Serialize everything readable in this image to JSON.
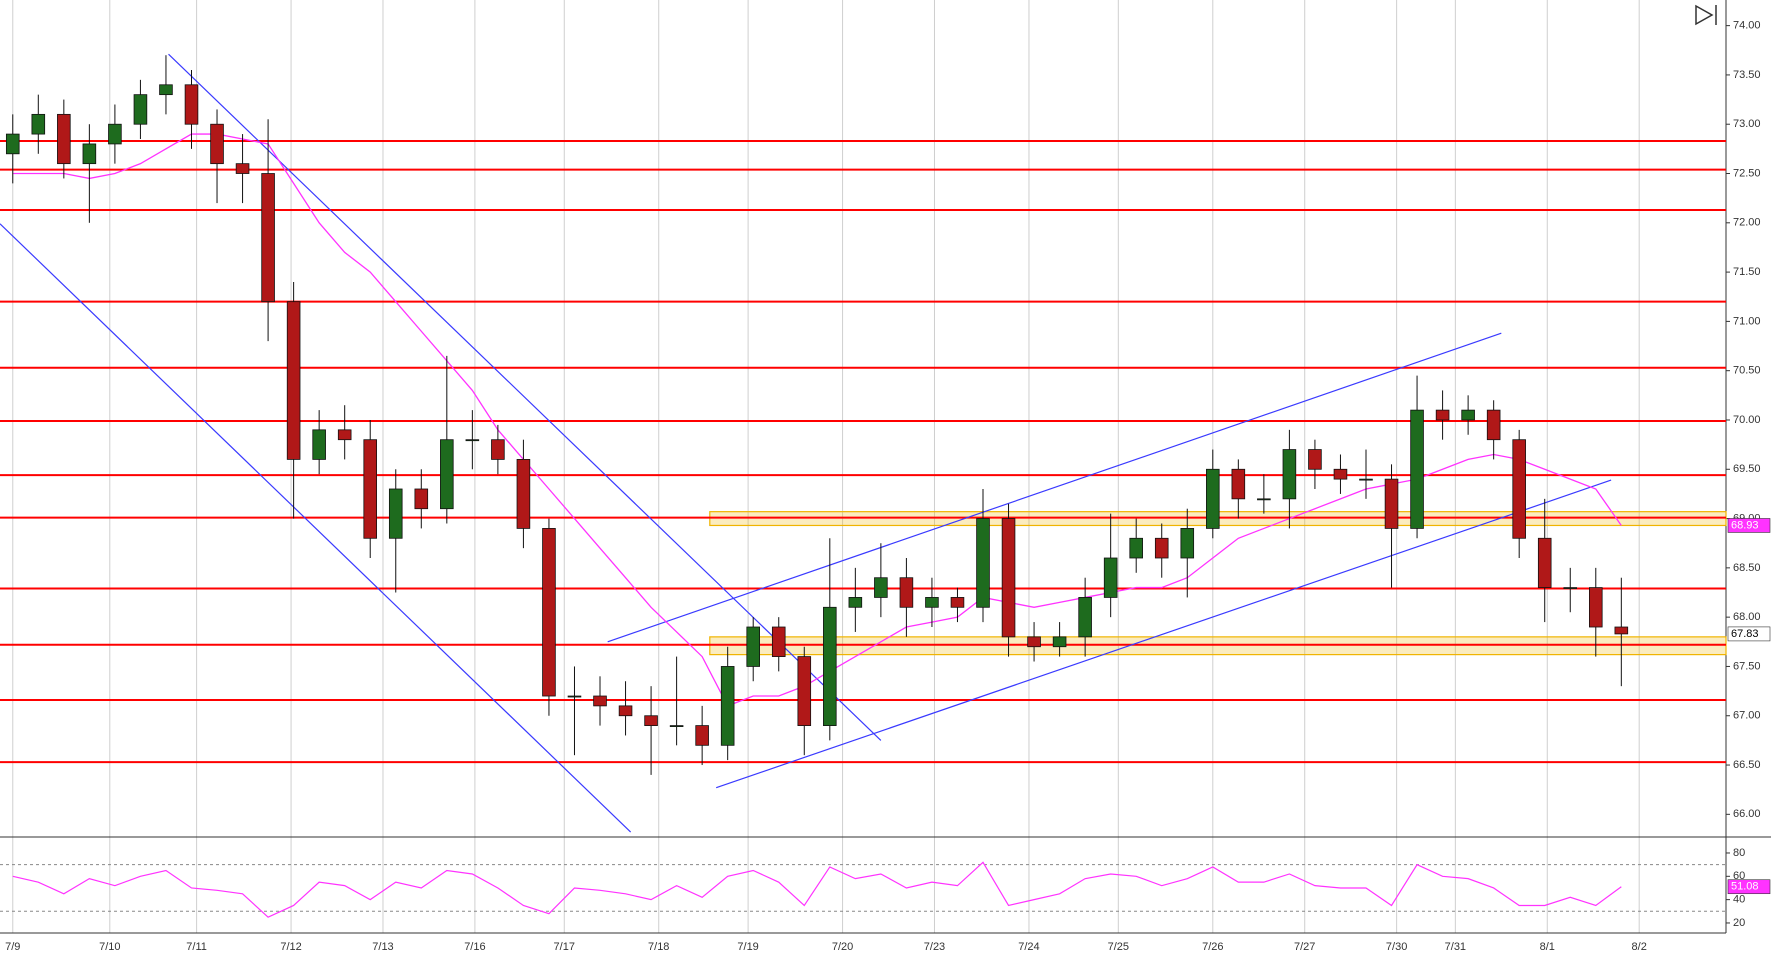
{
  "chart_data": {
    "type": "candlestick",
    "open": [
      72.7,
      72.9,
      73.1,
      72.6,
      72.8,
      73.0,
      73.3,
      73.4,
      73.0,
      72.6,
      72.5,
      71.2,
      69.6,
      69.9,
      69.8,
      68.8,
      69.3,
      69.1,
      69.8,
      69.8,
      69.6,
      68.9,
      67.2,
      67.2,
      67.1,
      67.0,
      66.9,
      66.9,
      66.7,
      67.5,
      67.9,
      67.6,
      66.9,
      68.1,
      68.2,
      68.4,
      68.1,
      68.2,
      68.1,
      69.0,
      67.8,
      67.7,
      67.8,
      68.2,
      68.6,
      68.8,
      68.6,
      68.9,
      69.5,
      69.2,
      69.2,
      69.7,
      69.5,
      69.4,
      69.4,
      68.9,
      70.1,
      70.0,
      70.1,
      69.8,
      68.8,
      68.3,
      68.3,
      67.9
    ],
    "high": [
      73.1,
      73.3,
      73.25,
      73.0,
      73.2,
      73.45,
      73.7,
      73.55,
      73.15,
      72.9,
      73.05,
      71.4,
      70.1,
      70.15,
      70.0,
      69.5,
      69.5,
      70.65,
      70.1,
      69.95,
      69.8,
      69.0,
      67.5,
      67.4,
      67.35,
      67.3,
      67.6,
      67.1,
      67.7,
      68.0,
      68.0,
      67.7,
      68.8,
      68.5,
      68.75,
      68.6,
      68.4,
      68.3,
      69.3,
      69.15,
      67.95,
      67.95,
      68.4,
      69.05,
      69.0,
      68.95,
      69.1,
      69.7,
      69.6,
      69.45,
      69.9,
      69.8,
      69.65,
      69.7,
      69.55,
      70.45,
      70.3,
      70.25,
      70.2,
      69.9,
      69.2,
      68.5,
      68.5,
      68.4
    ],
    "low": [
      72.4,
      72.7,
      72.45,
      72.0,
      72.6,
      72.85,
      73.1,
      72.75,
      72.2,
      72.2,
      70.8,
      69.0,
      69.45,
      69.6,
      68.6,
      68.25,
      68.9,
      68.95,
      69.5,
      69.45,
      68.7,
      67.0,
      66.6,
      66.9,
      66.8,
      66.4,
      66.7,
      66.5,
      66.55,
      67.35,
      67.45,
      66.6,
      66.75,
      67.85,
      68.0,
      67.8,
      67.9,
      67.95,
      67.95,
      67.6,
      67.55,
      67.6,
      67.6,
      68.0,
      68.45,
      68.4,
      68.2,
      68.8,
      69.0,
      69.05,
      68.9,
      69.3,
      69.25,
      69.2,
      68.3,
      68.8,
      69.8,
      69.85,
      69.6,
      68.6,
      67.95,
      68.05,
      67.6,
      67.3
    ],
    "close": [
      72.9,
      73.1,
      72.6,
      72.8,
      73.0,
      73.3,
      73.4,
      73.0,
      72.6,
      72.5,
      71.2,
      69.6,
      69.9,
      69.8,
      68.8,
      69.3,
      69.1,
      69.8,
      69.8,
      69.6,
      68.9,
      67.2,
      67.2,
      67.1,
      67.0,
      66.9,
      66.9,
      66.7,
      67.5,
      67.9,
      67.6,
      66.9,
      68.1,
      68.2,
      68.4,
      68.1,
      68.2,
      68.1,
      69.0,
      67.8,
      67.7,
      67.8,
      68.2,
      68.6,
      68.8,
      68.6,
      68.9,
      69.5,
      69.2,
      69.2,
      69.7,
      69.5,
      69.4,
      69.4,
      68.9,
      70.1,
      70.0,
      70.1,
      69.8,
      68.8,
      68.3,
      68.3,
      67.9,
      67.83
    ],
    "up_color": "#1e6b1e",
    "down_color": "#b01818",
    "ylim": [
      65.77,
      74.26
    ],
    "yticks": [
      {
        "value": 74,
        "label": "74.00"
      },
      {
        "value": 73.5,
        "label": "73.50"
      },
      {
        "value": 73,
        "label": "73.00"
      },
      {
        "value": 72.5,
        "label": "72.50"
      },
      {
        "value": 72,
        "label": "72.00"
      },
      {
        "value": 71.5,
        "label": "71.50"
      },
      {
        "value": 71,
        "label": "71.00"
      },
      {
        "value": 70.5,
        "label": "70.50"
      },
      {
        "value": 70,
        "label": "70.00"
      },
      {
        "value": 69.5,
        "label": "69.50"
      },
      {
        "value": 69,
        "label": "69.00"
      },
      {
        "value": 68.5,
        "label": "68.50"
      },
      {
        "value": 68,
        "label": "68.00"
      },
      {
        "value": 67.5,
        "label": "67.50"
      },
      {
        "value": 67,
        "label": "67.00"
      },
      {
        "value": 66.5,
        "label": "66.50"
      },
      {
        "value": 66,
        "label": "66.00"
      }
    ],
    "xlim": [
      0,
      67.6
    ],
    "xticks": [
      {
        "value": 0.5,
        "label": "7/9"
      },
      {
        "value": 4.3,
        "label": "7/10"
      },
      {
        "value": 7.7,
        "label": "7/11"
      },
      {
        "value": 11.4,
        "label": "7/12"
      },
      {
        "value": 15.0,
        "label": "7/13"
      },
      {
        "value": 18.6,
        "label": "7/16"
      },
      {
        "value": 22.1,
        "label": "7/17"
      },
      {
        "value": 25.8,
        "label": "7/18"
      },
      {
        "value": 29.3,
        "label": "7/19"
      },
      {
        "value": 33.0,
        "label": "7/20"
      },
      {
        "value": 36.6,
        "label": "7/23"
      },
      {
        "value": 40.3,
        "label": "7/24"
      },
      {
        "value": 43.8,
        "label": "7/25"
      },
      {
        "value": 47.5,
        "label": "7/26"
      },
      {
        "value": 51.1,
        "label": "7/27"
      },
      {
        "value": 54.7,
        "label": "7/30"
      },
      {
        "value": 57.0,
        "label": "7/31"
      },
      {
        "value": 60.6,
        "label": "8/1"
      },
      {
        "value": 64.2,
        "label": "8/2"
      }
    ],
    "grid": true,
    "levels": [
      72.83,
      72.54,
      72.13,
      71.2,
      70.53,
      69.99,
      69.44,
      69.01,
      68.29,
      67.72,
      67.16,
      66.53
    ],
    "level_color": "#ff0000",
    "zones": [
      {
        "x": [
          27.8,
          67.6
        ],
        "y": [
          69.07,
          68.93
        ]
      },
      {
        "x": [
          27.8,
          67.6
        ],
        "y": [
          67.8,
          67.62
        ]
      }
    ],
    "zone_color": "#f0b400",
    "trendlines": [
      {
        "x": [
          6.6,
          34.5
        ],
        "y": [
          73.71,
          66.75
        ]
      },
      {
        "x": [
          0,
          24.7
        ],
        "y": [
          71.99,
          65.82
        ]
      },
      {
        "x": [
          23.8,
          58.8
        ],
        "y": [
          67.75,
          70.88
        ]
      },
      {
        "x": [
          28.05,
          63.1
        ],
        "y": [
          66.27,
          69.39
        ]
      }
    ],
    "trendline_color": "#3a3aff",
    "moving_average": {
      "color": "#ff33ff",
      "values": [
        72.5,
        72.5,
        72.5,
        72.45,
        72.5,
        72.6,
        72.75,
        72.9,
        72.9,
        72.85,
        72.8,
        72.4,
        72.0,
        71.7,
        71.5,
        71.2,
        70.9,
        70.6,
        70.3,
        69.9,
        69.6,
        69.3,
        69.0,
        68.7,
        68.4,
        68.1,
        67.85,
        67.6,
        67.1,
        67.2,
        67.2,
        67.3,
        67.45,
        67.6,
        67.75,
        67.9,
        67.95,
        68.0,
        68.2,
        68.15,
        68.1,
        68.15,
        68.2,
        68.25,
        68.3,
        68.3,
        68.4,
        68.6,
        68.8,
        68.9,
        69.0,
        69.1,
        69.2,
        69.3,
        69.35,
        69.4,
        69.5,
        69.6,
        69.65,
        69.6,
        69.5,
        69.4,
        69.3,
        68.93
      ]
    },
    "rsi": {
      "type": "line",
      "color": "#ff33ff",
      "values": [
        60,
        55,
        45,
        58,
        52,
        60,
        65,
        50,
        48,
        45,
        25,
        35,
        55,
        52,
        40,
        55,
        50,
        65,
        62,
        50,
        35,
        28,
        50,
        48,
        45,
        40,
        52,
        42,
        60,
        65,
        55,
        35,
        68,
        58,
        62,
        50,
        55,
        52,
        72,
        35,
        40,
        45,
        58,
        62,
        60,
        52,
        58,
        68,
        55,
        55,
        62,
        52,
        50,
        50,
        35,
        70,
        60,
        58,
        50,
        35,
        35,
        42,
        35,
        51.08
      ],
      "ylim": [
        11.4,
        93.7
      ],
      "yticks": [
        20,
        40,
        60,
        80
      ],
      "ref_lines": [
        70,
        30
      ]
    }
  }
}
